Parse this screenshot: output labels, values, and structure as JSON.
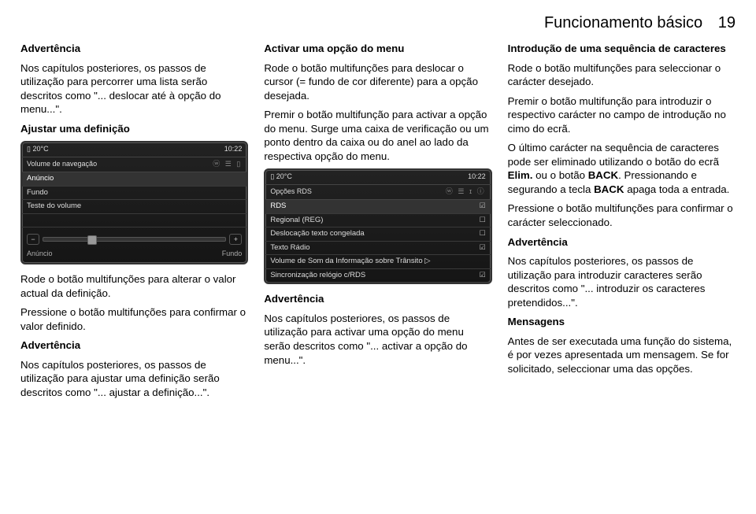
{
  "header": {
    "title": "Funcionamento básico",
    "page": "19"
  },
  "col1": {
    "adv1_title": "Advertência",
    "adv1_body": "Nos capítulos posteriores, os passos de utilização para percorrer uma lista serão descritos como \"... deslocar até à opção do menu...\". ",
    "h1": "Ajustar uma definição",
    "screenshot1": {
      "temp": "20°C",
      "clock": "10:22",
      "title": "Volume de navegação",
      "rows": [
        "Anúncio",
        "Fundo",
        "Teste do volume"
      ],
      "slider_left": "−",
      "slider_right": "+",
      "bottom_left": "Anúncio",
      "bottom_right": "Fundo"
    },
    "p1": "Rode o botão multifunções para alterar o valor actual da definição.",
    "p2": "Pressione o botão multifunções para confirmar o valor definido.",
    "adv2_title": "Advertência",
    "adv2_body": "Nos capítulos posteriores, os passos de utilização para ajustar uma definição serão descritos como \"... ajustar a definição...\"."
  },
  "col2": {
    "h1": "Activar uma opção do menu",
    "p1": "Rode o botão multifunções para deslocar o cursor (= fundo de cor diferente) para a opção desejada.",
    "p2": "Premir o botão multifunção para activar a opção do menu. Surge uma caixa de verificação ou um ponto dentro da caixa ou do anel ao lado da respectiva opção do menu.",
    "screenshot2": {
      "temp": "20°C",
      "clock": "10:22",
      "title": "Opções RDS",
      "rows": [
        {
          "l": "RDS",
          "c": "☑"
        },
        {
          "l": "Regional (REG)",
          "c": "☐"
        },
        {
          "l": "Deslocação texto congelada",
          "c": "☐"
        },
        {
          "l": "Texto Rádio",
          "c": "☑"
        },
        {
          "l": "Volume de Som da Informação sobre Trânsito ▷",
          "c": ""
        },
        {
          "l": "Sincronização relógio c/RDS",
          "c": "☑"
        }
      ]
    },
    "adv_title": "Advertência",
    "adv_body": "Nos capítulos posteriores, os passos de utilização para activar uma opção do menu serão descritos como \"... activar a opção do menu...\"."
  },
  "col3": {
    "h1": "Introdução de uma sequência de caracteres",
    "p1": "Rode o botão multifunções para seleccionar o carácter desejado.",
    "p2": "Premir o botão multifunção para introduzir o respectivo carácter no campo de introdução no cimo do ecrã.",
    "p3a": "O último carácter na sequência de caracteres pode ser eliminado utilizando o botão do ecrã ",
    "p3b": "Elim.",
    "p3c": " ou o botão ",
    "p3d": "BACK",
    "p3e": ". Pressionando e segurando a tecla ",
    "p3f": "BACK",
    "p3g": " apaga toda a entrada.",
    "p4": "Pressione o botão multifunções para confirmar o carácter seleccionado.",
    "adv_title": "Advertência",
    "adv_body": "Nos capítulos posteriores, os passos de utilização para introduzir caracteres serão descritos como \"... introduzir os caracteres pretendidos...\".",
    "h2": "Mensagens",
    "p5": "Antes de ser executada uma função do sistema, é por vezes apresentada um mensagem. Se for solicitado, seleccionar uma das opções."
  }
}
